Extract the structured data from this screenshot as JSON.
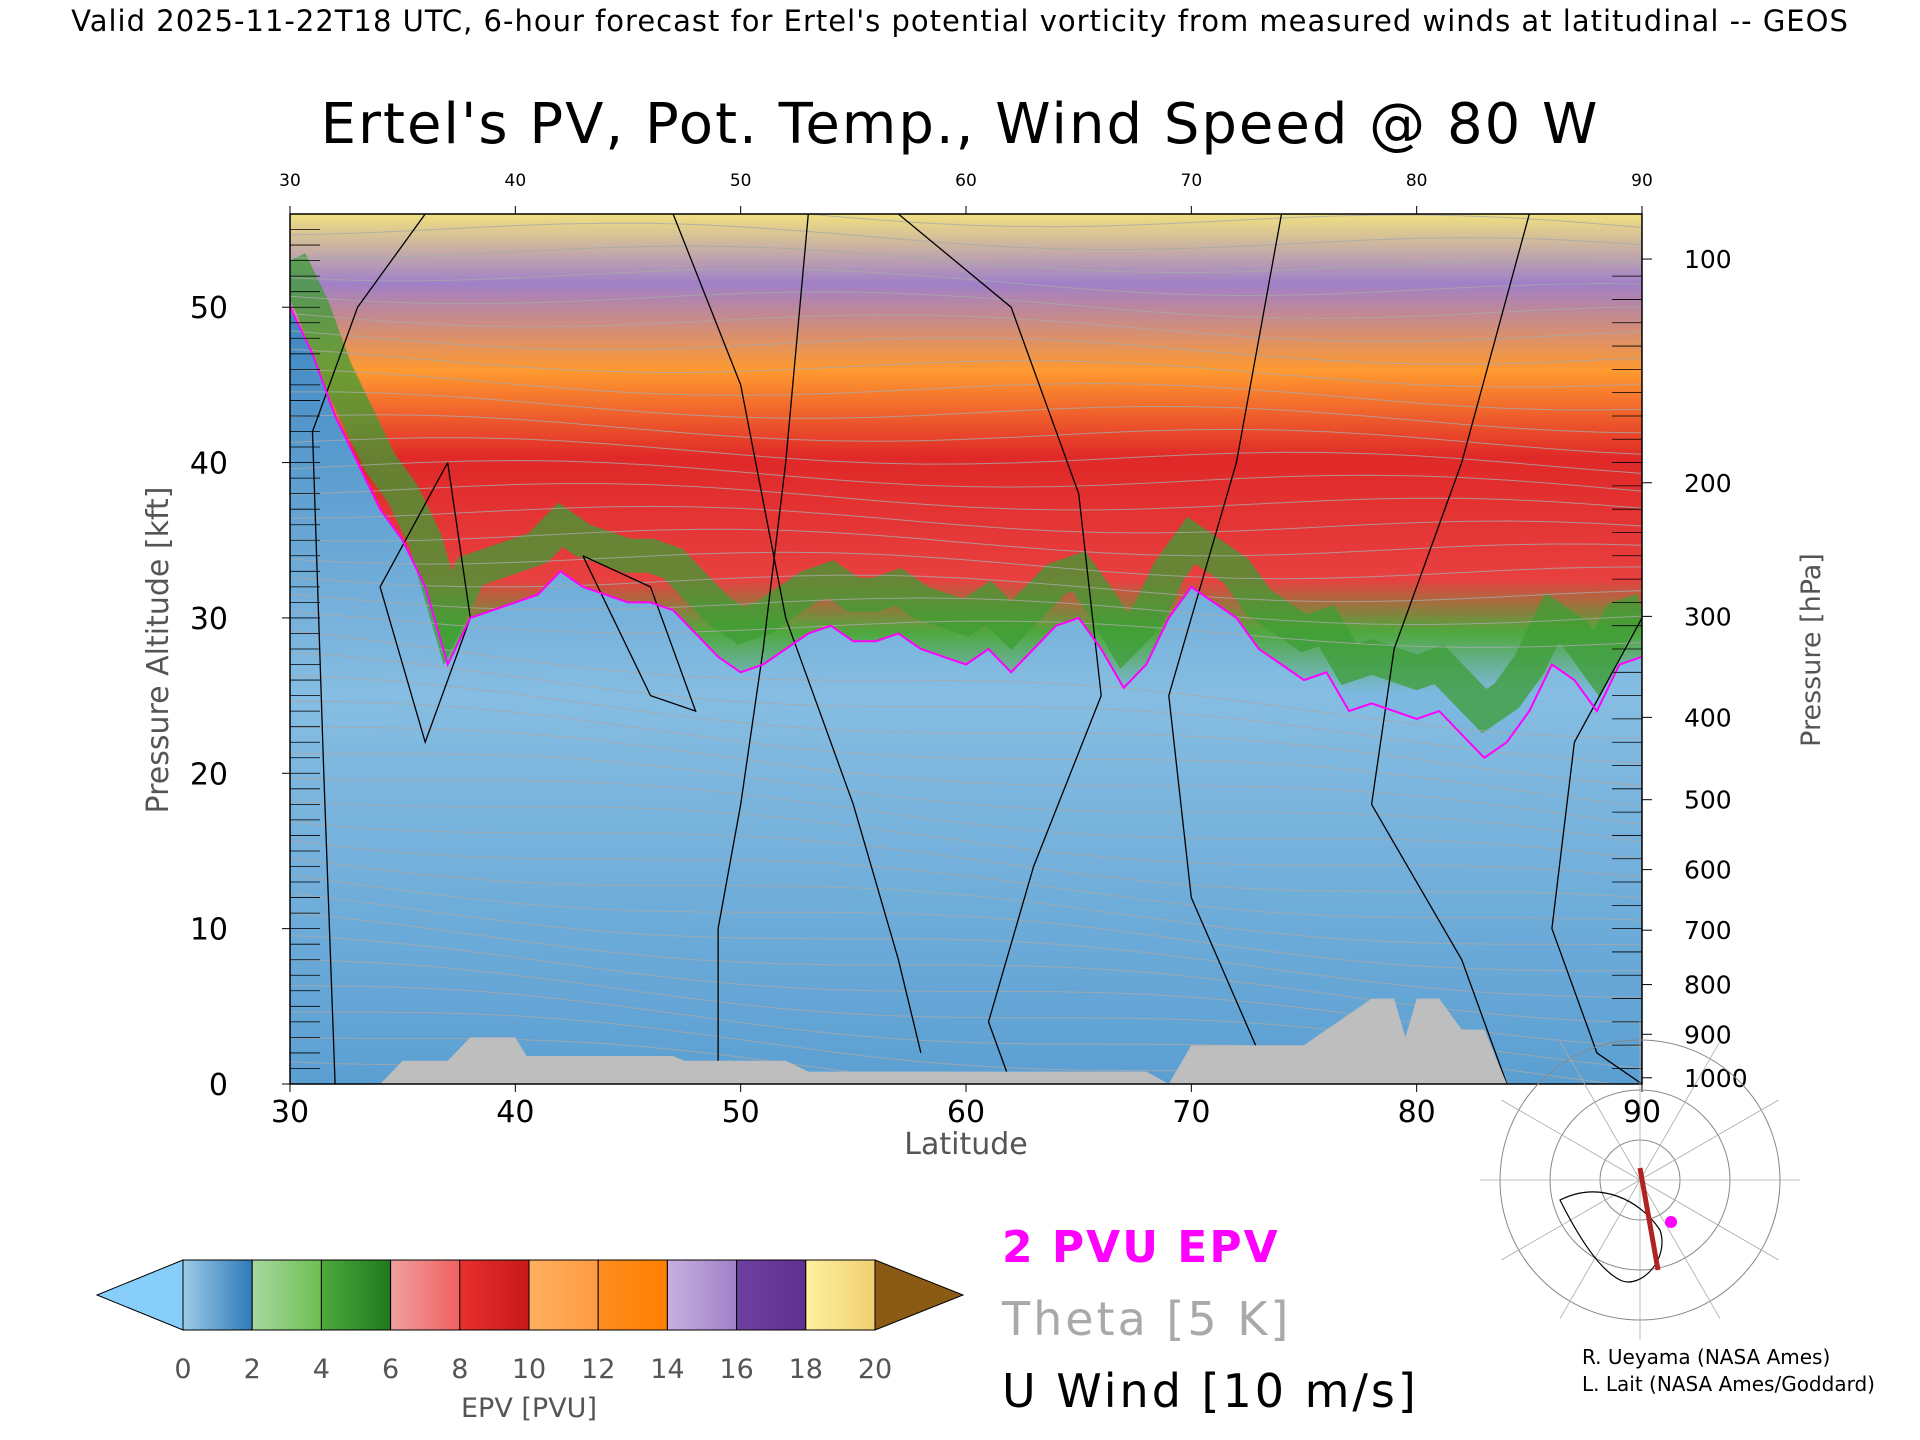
{
  "header": {
    "valid_line": "Valid 2025-11-22T18 UTC, 6-hour forecast for Ertel's potential vorticity from measured winds at latitudinal -- GEOS"
  },
  "chart_data": {
    "type": "heatmap",
    "title": "Ertel's PV, Pot. Temp., Wind Speed @ 80 W",
    "xlabel": "Latitude",
    "ylabel": "Pressure Altitude [kft]",
    "ylabel_right": "Pressure [hPa]",
    "xlim": [
      30,
      90
    ],
    "ylim": [
      0,
      56
    ],
    "x_ticks": [
      30,
      40,
      50,
      60,
      70,
      80,
      90
    ],
    "y_ticks": [
      0,
      10,
      20,
      30,
      40,
      50
    ],
    "pressure_ticks": [
      {
        "label": "100",
        "kft": 53.1
      },
      {
        "label": "200",
        "kft": 38.7
      },
      {
        "label": "300",
        "kft": 30.1
      },
      {
        "label": "400",
        "kft": 23.6
      },
      {
        "label": "500",
        "kft": 18.3
      },
      {
        "label": "600",
        "kft": 13.8
      },
      {
        "label": "700",
        "kft": 9.9
      },
      {
        "label": "800",
        "kft": 6.4
      },
      {
        "label": "900",
        "kft": 3.2
      },
      {
        "label": "1000",
        "kft": 0.4
      }
    ],
    "tropopause_2pvu_kft": [
      [
        30,
        50
      ],
      [
        31,
        47
      ],
      [
        32,
        43
      ],
      [
        33,
        40
      ],
      [
        34,
        37
      ],
      [
        35,
        35
      ],
      [
        36,
        32
      ],
      [
        37,
        27
      ],
      [
        38,
        30
      ],
      [
        39,
        30.5
      ],
      [
        40,
        31
      ],
      [
        41,
        31.5
      ],
      [
        42,
        33
      ],
      [
        43,
        32
      ],
      [
        44,
        31.5
      ],
      [
        45,
        31
      ],
      [
        46,
        31
      ],
      [
        47,
        30.5
      ],
      [
        48,
        29
      ],
      [
        49,
        27.5
      ],
      [
        50,
        26.5
      ],
      [
        51,
        27
      ],
      [
        52,
        28
      ],
      [
        53,
        29
      ],
      [
        54,
        29.5
      ],
      [
        55,
        28.5
      ],
      [
        56,
        28.5
      ],
      [
        57,
        29
      ],
      [
        58,
        28
      ],
      [
        59,
        27.5
      ],
      [
        60,
        27
      ],
      [
        61,
        28
      ],
      [
        62,
        26.5
      ],
      [
        63,
        28
      ],
      [
        64,
        29.5
      ],
      [
        65,
        30
      ],
      [
        66,
        28
      ],
      [
        67,
        25.5
      ],
      [
        68,
        27
      ],
      [
        69,
        30
      ],
      [
        70,
        32
      ],
      [
        71,
        31
      ],
      [
        72,
        30
      ],
      [
        73,
        28
      ],
      [
        74,
        27
      ],
      [
        75,
        26
      ],
      [
        76,
        26.5
      ],
      [
        77,
        24
      ],
      [
        78,
        24.5
      ],
      [
        79,
        24
      ],
      [
        80,
        23.5
      ],
      [
        81,
        24
      ],
      [
        82,
        22.5
      ],
      [
        83,
        21
      ],
      [
        84,
        22
      ],
      [
        85,
        24
      ],
      [
        86,
        27
      ],
      [
        87,
        26
      ],
      [
        88,
        24
      ],
      [
        89,
        27
      ],
      [
        90,
        27.5
      ]
    ],
    "ground_kft": [
      [
        30,
        0
      ],
      [
        34,
        0
      ],
      [
        35,
        1.5
      ],
      [
        37,
        1.5
      ],
      [
        38,
        3
      ],
      [
        40,
        3
      ],
      [
        40.5,
        1.8
      ],
      [
        47,
        1.8
      ],
      [
        47.5,
        1.5
      ],
      [
        52,
        1.5
      ],
      [
        53,
        0.8
      ],
      [
        68,
        0.8
      ],
      [
        69,
        0
      ],
      [
        70,
        2.5
      ],
      [
        75,
        2.5
      ],
      [
        76,
        3.5
      ],
      [
        77,
        4.5
      ],
      [
        78,
        5.5
      ],
      [
        79,
        5.5
      ],
      [
        79.5,
        3
      ],
      [
        80,
        5.5
      ],
      [
        81,
        5.5
      ],
      [
        82,
        3.5
      ],
      [
        83,
        3.5
      ],
      [
        84,
        0
      ]
    ],
    "wind_contours_ms": [
      10,
      20,
      30
    ],
    "colorbar": {
      "label": "EPV [PVU]",
      "ticks": [
        "0",
        "2",
        "4",
        "6",
        "8",
        "10",
        "12",
        "14",
        "16",
        "18",
        "20"
      ],
      "under_color": "#87cefa",
      "over_color": "#8b5a14",
      "segments": [
        [
          "#9ccbe6",
          "#2e7ab8"
        ],
        [
          "#a8d8a0",
          "#6cbf52"
        ],
        [
          "#4ea83c",
          "#1f7a1f"
        ],
        [
          "#f0a0a0",
          "#f06060"
        ],
        [
          "#e83030",
          "#c81818"
        ],
        [
          "#ffb060",
          "#ff9a40"
        ],
        [
          "#ff8c20",
          "#ff8000"
        ],
        [
          "#c8b0e0",
          "#a080c8"
        ],
        [
          "#7040a0",
          "#603090"
        ],
        [
          "#fff0a0",
          "#f0d070"
        ]
      ]
    },
    "overlays": {
      "pvu_label": "2 PVU EPV",
      "theta_label": "Theta [5 K]",
      "uwind_label": "U Wind [10 m/s]"
    },
    "colors": {
      "pvu": "#ff00ff",
      "theta": "#a9a9a9",
      "ground": "#bebebe"
    }
  },
  "credits": {
    "line1": "R. Ueyama (NASA Ames)",
    "line2": "L. Lait (NASA Ames/Goddard)"
  }
}
